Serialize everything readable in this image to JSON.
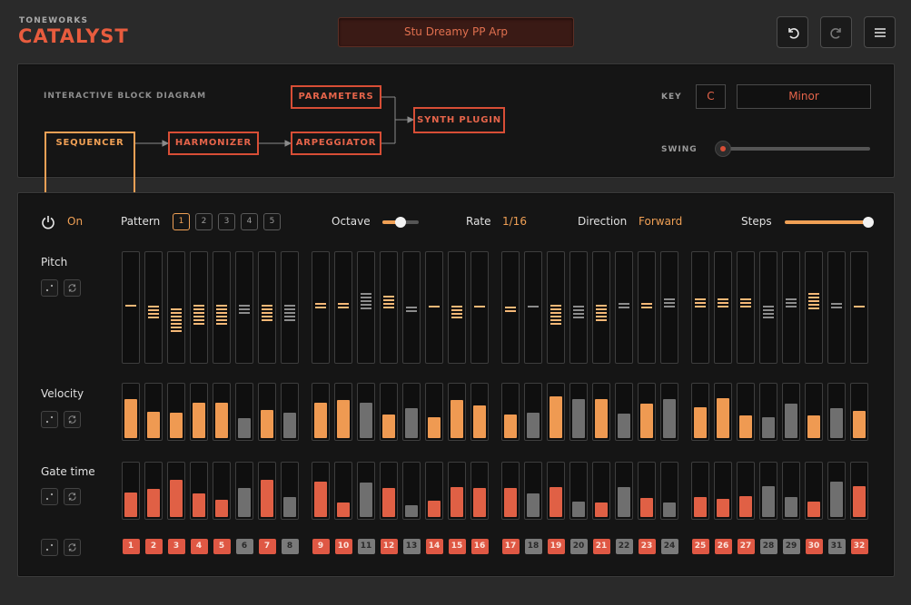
{
  "brand": {
    "company": "TONEWORKS",
    "product": "CATALYST"
  },
  "preset": {
    "name": "Stu Dreamy PP Arp"
  },
  "header_buttons": {
    "undo": "undo-icon",
    "redo": "redo-icon",
    "menu": "menu-icon"
  },
  "diagram": {
    "title": "INTERACTIVE BLOCK DIAGRAM",
    "blocks": {
      "sequencer": "SEQUENCER",
      "harmonizer": "HARMONIZER",
      "arpeggiator": "ARPEGGIATOR",
      "parameters": "PARAMETERS",
      "synth_plugin": "SYNTH PLUGIN"
    },
    "key_label": "KEY",
    "key_value": "C",
    "scale_value": "Minor",
    "swing_label": "SWING",
    "swing_value": 0
  },
  "sequencer": {
    "power_state": "On",
    "pattern_label": "Pattern",
    "patterns": [
      "1",
      "2",
      "3",
      "4",
      "5"
    ],
    "active_pattern": 1,
    "octave_label": "Octave",
    "octave_value": 0.5,
    "rate_label": "Rate",
    "rate_value": "1/16",
    "direction_label": "Direction",
    "direction_value": "Forward",
    "steps_label": "Steps",
    "steps_value": 32,
    "rows": {
      "pitch": "Pitch",
      "velocity": "Velocity",
      "gate": "Gate time"
    },
    "active": [
      1,
      1,
      1,
      1,
      1,
      0,
      1,
      0,
      1,
      1,
      0,
      1,
      0,
      1,
      1,
      1,
      1,
      0,
      1,
      0,
      1,
      0,
      1,
      0,
      1,
      1,
      1,
      0,
      0,
      1,
      0,
      1
    ],
    "pitch": [
      {
        "pos": 0.48,
        "n": 1
      },
      {
        "pos": 0.54,
        "n": 4
      },
      {
        "pos": 0.62,
        "n": 7
      },
      {
        "pos": 0.57,
        "n": 6
      },
      {
        "pos": 0.57,
        "n": 6
      },
      {
        "pos": 0.52,
        "n": 3
      },
      {
        "pos": 0.55,
        "n": 5
      },
      {
        "pos": 0.55,
        "n": 5
      },
      {
        "pos": 0.48,
        "n": 2
      },
      {
        "pos": 0.48,
        "n": 2
      },
      {
        "pos": 0.44,
        "n": 5
      },
      {
        "pos": 0.45,
        "n": 4
      },
      {
        "pos": 0.52,
        "n": 2
      },
      {
        "pos": 0.49,
        "n": 1
      },
      {
        "pos": 0.54,
        "n": 4
      },
      {
        "pos": 0.49,
        "n": 1
      },
      {
        "pos": 0.52,
        "n": 2
      },
      {
        "pos": 0.49,
        "n": 1
      },
      {
        "pos": 0.57,
        "n": 6
      },
      {
        "pos": 0.54,
        "n": 4
      },
      {
        "pos": 0.55,
        "n": 5
      },
      {
        "pos": 0.48,
        "n": 2
      },
      {
        "pos": 0.48,
        "n": 2
      },
      {
        "pos": 0.46,
        "n": 3
      },
      {
        "pos": 0.46,
        "n": 3
      },
      {
        "pos": 0.46,
        "n": 3
      },
      {
        "pos": 0.46,
        "n": 3
      },
      {
        "pos": 0.54,
        "n": 4
      },
      {
        "pos": 0.46,
        "n": 3
      },
      {
        "pos": 0.44,
        "n": 5
      },
      {
        "pos": 0.48,
        "n": 2
      },
      {
        "pos": 0.49,
        "n": 1
      }
    ],
    "velocity": [
      0.72,
      0.49,
      0.46,
      0.65,
      0.65,
      0.37,
      0.52,
      0.47,
      0.65,
      0.7,
      0.65,
      0.43,
      0.55,
      0.38,
      0.7,
      0.6,
      0.44,
      0.47,
      0.77,
      0.72,
      0.71,
      0.45,
      0.63,
      0.72,
      0.57,
      0.73,
      0.42,
      0.39,
      0.64,
      0.41,
      0.55,
      0.5
    ],
    "gate": [
      0.45,
      0.52,
      0.68,
      0.44,
      0.31,
      0.53,
      0.68,
      0.37,
      0.65,
      0.27,
      0.63,
      0.54,
      0.22,
      0.3,
      0.55,
      0.53,
      0.54,
      0.43,
      0.55,
      0.28,
      0.27,
      0.55,
      0.35,
      0.27,
      0.36,
      0.34,
      0.39,
      0.57,
      0.36,
      0.28,
      0.65,
      0.56
    ],
    "step_numbers": [
      "1",
      "2",
      "3",
      "4",
      "5",
      "6",
      "7",
      "8",
      "9",
      "10",
      "11",
      "12",
      "13",
      "14",
      "15",
      "16",
      "17",
      "18",
      "19",
      "20",
      "21",
      "22",
      "23",
      "24",
      "25",
      "26",
      "27",
      "28",
      "29",
      "30",
      "31",
      "32"
    ],
    "colors": {
      "on_bar": "#ef9a52",
      "off_bar": "#6f6f6f",
      "on_gate": "#e06045",
      "on_step": "#df5844",
      "off_step": "#7a7a7a",
      "pitch_on": "#f4b877",
      "pitch_off": "#8c8c8c"
    }
  }
}
